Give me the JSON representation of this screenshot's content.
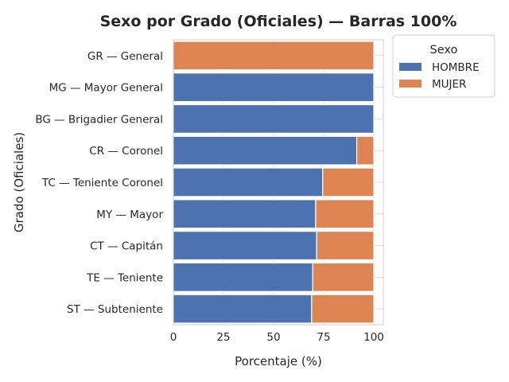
{
  "chart_data": {
    "type": "bar",
    "orientation": "horizontal",
    "stacked": true,
    "title": "Sexo por Grado (Oficiales) — Barras 100%",
    "xlabel": "Porcentaje (%)",
    "ylabel": "Grado (Oficiales)",
    "xlim": [
      0,
      100
    ],
    "xticks": [
      0,
      25,
      50,
      75,
      100
    ],
    "grid": true,
    "legend": {
      "title": "Sexo",
      "position": "outside-top-right"
    },
    "categories": [
      "GR — General",
      "MG — Mayor General",
      "BG — Brigadier General",
      "CR — Coronel",
      "TC — Teniente Coronel",
      "MY — Mayor",
      "CT — Capitán",
      "TE — Teniente",
      "ST — Subteniente"
    ],
    "series": [
      {
        "name": "HOMBRE",
        "color": "#4c72b0",
        "values": [
          0,
          100,
          100,
          91.5,
          74.5,
          71,
          71.5,
          69.5,
          69
        ]
      },
      {
        "name": "MUJER",
        "color": "#dd8452",
        "values": [
          100,
          0,
          0,
          8.5,
          25.5,
          29,
          28.5,
          30.5,
          31
        ]
      }
    ]
  }
}
